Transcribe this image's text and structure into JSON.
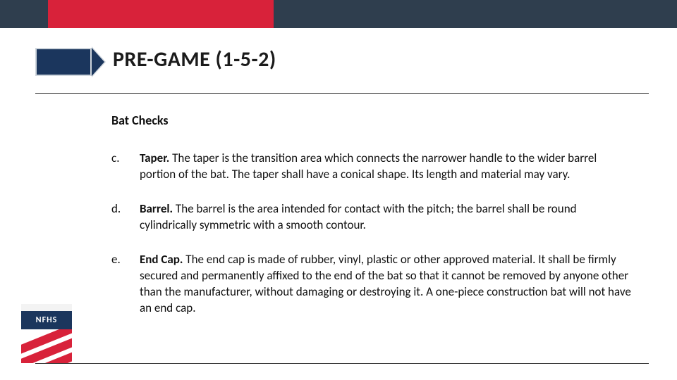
{
  "colors": {
    "header_bg": "#2f3e4e",
    "header_accent": "#d8223a",
    "tag_fill": "#1b365d",
    "tag_border": "#cfd6dd",
    "text": "#111111",
    "rule": "#333333",
    "page_bg": "#ffffff"
  },
  "title": "PRE-GAME (1-5-2)",
  "section": "Bat Checks",
  "items": [
    {
      "letter": "c.",
      "bold": "Taper.",
      "text": " The taper is the transition area which connects the narrower handle to the wider barrel portion of the bat. The taper shall have a conical shape. Its length and material may vary."
    },
    {
      "letter": "d.",
      "bold": "Barrel.",
      "text": " The barrel is the area intended for contact with the pitch; the barrel shall be round cylindrically symmetric with a smooth contour."
    },
    {
      "letter": "e.",
      "bold": "End Cap.",
      "text": " The end cap is made of rubber, vinyl, plastic or other approved material. It shall be firmly secured and permanently affixed to the end of the bat so that it cannot be removed by anyone other than the manufacturer, without damaging or destroying it. A one-piece construction bat will not have an end cap."
    }
  ],
  "logo_text": "NFHS"
}
